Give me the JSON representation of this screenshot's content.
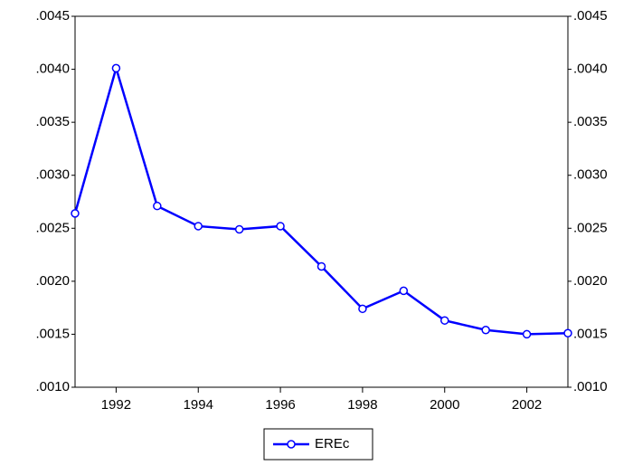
{
  "chart_data": {
    "type": "line",
    "x": [
      1991,
      1992,
      1993,
      1994,
      1995,
      1996,
      1997,
      1998,
      1999,
      2000,
      2001,
      2002,
      2003
    ],
    "series": [
      {
        "name": "EREc",
        "color": "#0000ff",
        "values": [
          0.00264,
          0.00401,
          0.00271,
          0.00252,
          0.00249,
          0.00252,
          0.00214,
          0.00174,
          0.00191,
          0.00163,
          0.00154,
          0.0015,
          0.00151
        ]
      }
    ],
    "xlim": [
      1991,
      2003
    ],
    "xticks": [
      1992,
      1994,
      1996,
      1998,
      2000,
      2002
    ],
    "ylim": [
      0.001,
      0.0045
    ],
    "yticks": [
      {
        "value": 0.001,
        "label": ".0010"
      },
      {
        "value": 0.0015,
        "label": ".0015"
      },
      {
        "value": 0.002,
        "label": ".0020"
      },
      {
        "value": 0.0025,
        "label": ".0025"
      },
      {
        "value": 0.003,
        "label": ".0030"
      },
      {
        "value": 0.0035,
        "label": ".0035"
      },
      {
        "value": 0.004,
        "label": ".0040"
      },
      {
        "value": 0.0045,
        "label": ".0045"
      }
    ],
    "grid": false
  }
}
